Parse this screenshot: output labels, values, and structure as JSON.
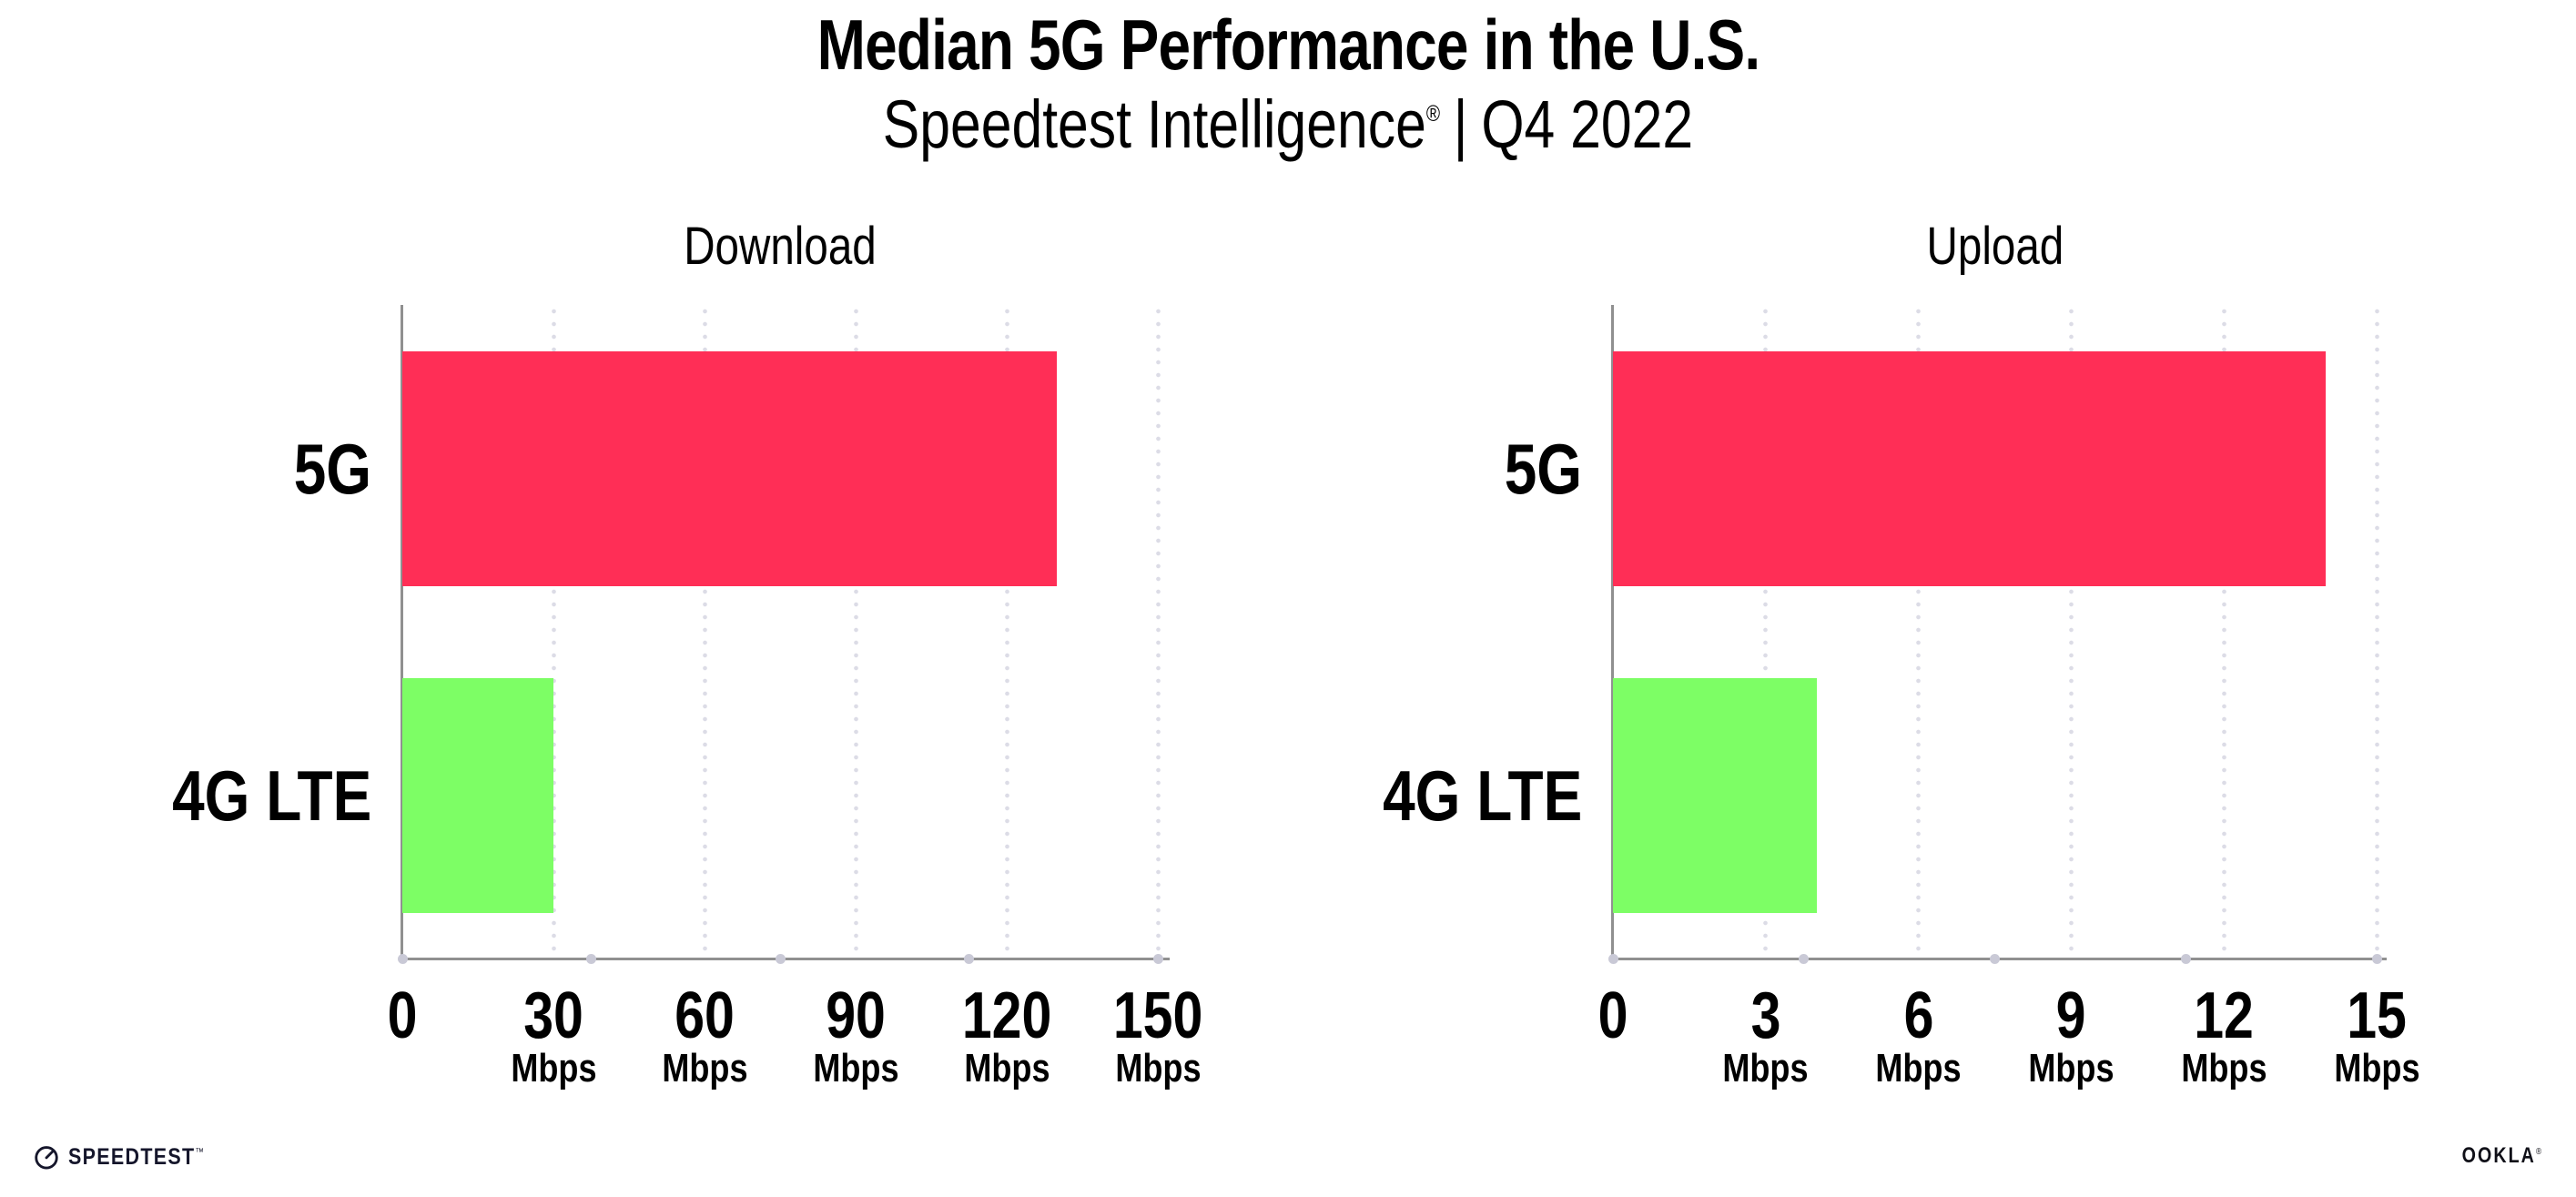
{
  "header": {
    "title": "Median 5G Performance in the U.S.",
    "subtitle_brand": "Speedtest Intelligence",
    "subtitle_reg": "®",
    "subtitle_separator": "|",
    "subtitle_period": "Q4 2022"
  },
  "chart_data": [
    {
      "type": "bar",
      "orientation": "horizontal",
      "title": "Download",
      "categories": [
        "5G",
        "4G LTE"
      ],
      "values": [
        130,
        30
      ],
      "unit": "Mbps",
      "xticks": [
        0,
        30,
        60,
        90,
        120,
        150
      ],
      "xlim": [
        0,
        152
      ],
      "bar_colors": [
        "#FF2E56",
        "#7DFE65"
      ],
      "grid": "dotted-vertical",
      "legend": "none"
    },
    {
      "type": "bar",
      "orientation": "horizontal",
      "title": "Upload",
      "categories": [
        "5G",
        "4G LTE"
      ],
      "values": [
        14,
        4
      ],
      "unit": "Mbps",
      "xticks": [
        0,
        3,
        6,
        9,
        12,
        15
      ],
      "xlim": [
        0,
        15.2
      ],
      "bar_colors": [
        "#FF2E56",
        "#7DFE65"
      ],
      "grid": "dotted-vertical",
      "legend": "none"
    }
  ],
  "colors": {
    "bar_5g": "#FF2E56",
    "bar_4g_lte": "#7DFE65",
    "axis_line": "#909090",
    "gridline_dots": "#DCDCE6",
    "axis_tick_dots": "#C9C9D6",
    "text": "#000000"
  },
  "footer": {
    "speedtest_label": "SPEEDTEST",
    "speedtest_tm": "™",
    "ookla_label": "OOKLA",
    "ookla_reg": "®"
  }
}
